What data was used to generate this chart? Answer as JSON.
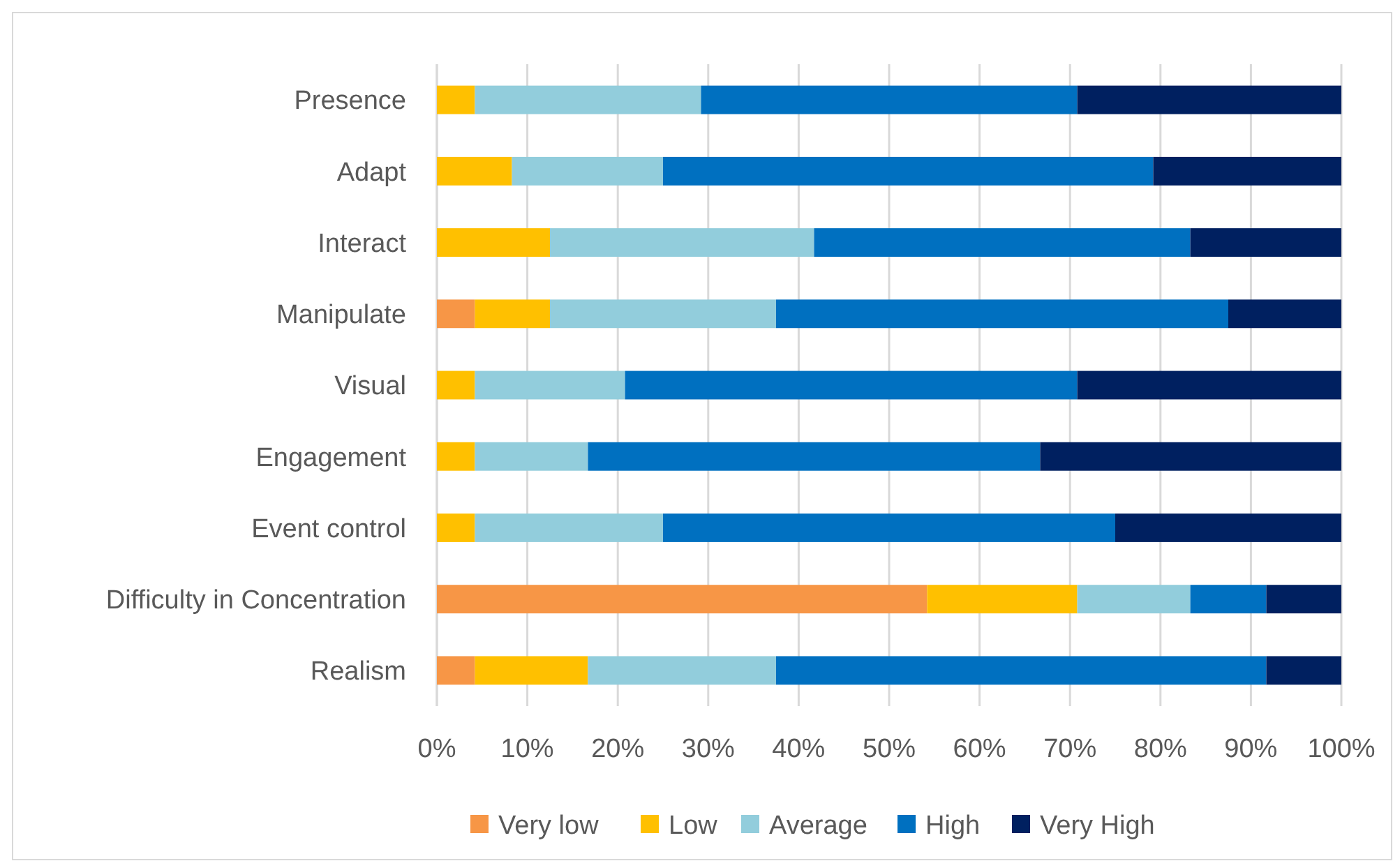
{
  "chart_data": {
    "type": "bar",
    "orientation": "horizontal",
    "stacked": true,
    "categories": [
      "Presence",
      "Adapt",
      "Interact",
      "Manipulate",
      "Visual",
      "Engagement",
      "Event control",
      "Difficulty in Concentration",
      "Realism"
    ],
    "series": [
      {
        "name": "Very low",
        "color": "#f79646",
        "values": [
          0,
          0,
          0,
          4.2,
          0,
          0,
          0,
          54.2,
          4.2
        ]
      },
      {
        "name": "Low",
        "color": "#ffc000",
        "values": [
          4.2,
          8.3,
          12.5,
          8.3,
          4.2,
          4.2,
          4.2,
          16.6,
          12.5
        ]
      },
      {
        "name": "Average",
        "color": "#92cddc",
        "values": [
          25,
          16.7,
          29.2,
          25,
          16.6,
          12.5,
          20.8,
          12.5,
          20.8
        ]
      },
      {
        "name": "High",
        "color": "#0070c0",
        "values": [
          41.6,
          54.2,
          41.6,
          50,
          50,
          50,
          50,
          8.4,
          54.2
        ]
      },
      {
        "name": "Very High",
        "color": "#002060",
        "values": [
          29.2,
          20.8,
          16.7,
          12.5,
          29.2,
          33.3,
          25,
          8.3,
          8.3
        ]
      }
    ],
    "xlim": [
      0,
      100
    ],
    "xticks": [
      {
        "value": 0,
        "label": "0%"
      },
      {
        "value": 10,
        "label": "10%"
      },
      {
        "value": 20,
        "label": "20%"
      },
      {
        "value": 30,
        "label": "30%"
      },
      {
        "value": 40,
        "label": "40%"
      },
      {
        "value": 50,
        "label": "50%"
      },
      {
        "value": 60,
        "label": "60%"
      },
      {
        "value": 70,
        "label": "70%"
      },
      {
        "value": 80,
        "label": "80%"
      },
      {
        "value": 90,
        "label": "90%"
      },
      {
        "value": 100,
        "label": "100%"
      }
    ],
    "grid": "x",
    "legend": "bottom"
  }
}
